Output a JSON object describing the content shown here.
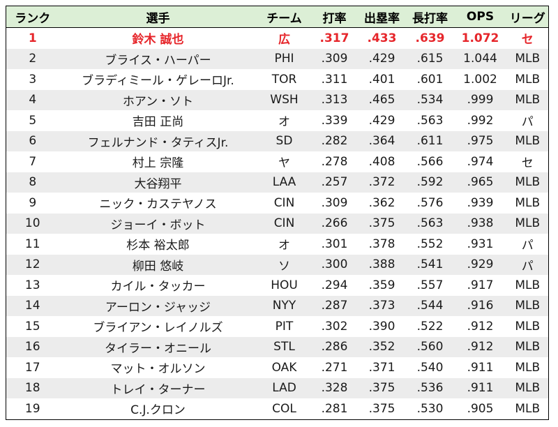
{
  "headers": {
    "rank": "ランク",
    "player": "選手",
    "team": "チーム",
    "avg": "打率",
    "obp": "出塁率",
    "slg": "長打率",
    "ops": "OPS",
    "league": "リーグ"
  },
  "highlight_color": "#e6262b",
  "header_bg": "#dcefd6",
  "rows": [
    {
      "rank": "1",
      "player": "鈴木 誠也",
      "team": "広",
      "avg": ".317",
      "obp": ".433",
      "slg": ".639",
      "ops": "1.072",
      "league": "セ"
    },
    {
      "rank": "2",
      "player": "ブライス・ハーパー",
      "team": "PHI",
      "avg": ".309",
      "obp": ".429",
      "slg": ".615",
      "ops": "1.044",
      "league": "MLB"
    },
    {
      "rank": "3",
      "player": "ブラディミール・ゲレーロJr.",
      "team": "TOR",
      "avg": ".311",
      "obp": ".401",
      "slg": ".601",
      "ops": "1.002",
      "league": "MLB"
    },
    {
      "rank": "4",
      "player": "ホアン・ソト",
      "team": "WSH",
      "avg": ".313",
      "obp": ".465",
      "slg": ".534",
      "ops": ".999",
      "league": "MLB"
    },
    {
      "rank": "5",
      "player": "吉田 正尚",
      "team": "オ",
      "avg": ".339",
      "obp": ".429",
      "slg": ".563",
      "ops": ".992",
      "league": "パ"
    },
    {
      "rank": "6",
      "player": "フェルナンド・タティスJr.",
      "team": "SD",
      "avg": ".282",
      "obp": ".364",
      "slg": ".611",
      "ops": ".975",
      "league": "MLB"
    },
    {
      "rank": "7",
      "player": "村上 宗隆",
      "team": "ヤ",
      "avg": ".278",
      "obp": ".408",
      "slg": ".566",
      "ops": ".974",
      "league": "セ"
    },
    {
      "rank": "8",
      "player": "大谷翔平",
      "team": "LAA",
      "avg": ".257",
      "obp": ".372",
      "slg": ".592",
      "ops": ".965",
      "league": "MLB"
    },
    {
      "rank": "9",
      "player": "ニック・カステヤノス",
      "team": "CIN",
      "avg": ".309",
      "obp": ".362",
      "slg": ".576",
      "ops": ".939",
      "league": "MLB"
    },
    {
      "rank": "10",
      "player": "ジョーイ・ボット",
      "team": "CIN",
      "avg": ".266",
      "obp": ".375",
      "slg": ".563",
      "ops": ".938",
      "league": "MLB"
    },
    {
      "rank": "11",
      "player": "杉本 裕太郎",
      "team": "オ",
      "avg": ".301",
      "obp": ".378",
      "slg": ".552",
      "ops": ".931",
      "league": "パ"
    },
    {
      "rank": "12",
      "player": "柳田 悠岐",
      "team": "ソ",
      "avg": ".300",
      "obp": ".388",
      "slg": ".541",
      "ops": ".929",
      "league": "パ"
    },
    {
      "rank": "13",
      "player": "カイル・タッカー",
      "team": "HOU",
      "avg": ".294",
      "obp": ".359",
      "slg": ".557",
      "ops": ".917",
      "league": "MLB"
    },
    {
      "rank": "14",
      "player": "アーロン・ジャッジ",
      "team": "NYY",
      "avg": ".287",
      "obp": ".373",
      "slg": ".544",
      "ops": ".916",
      "league": "MLB"
    },
    {
      "rank": "15",
      "player": "ブライアン・レイノルズ",
      "team": "PIT",
      "avg": ".302",
      "obp": ".390",
      "slg": ".522",
      "ops": ".912",
      "league": "MLB"
    },
    {
      "rank": "16",
      "player": "タイラー・オニール",
      "team": "STL",
      "avg": ".286",
      "obp": ".352",
      "slg": ".560",
      "ops": ".912",
      "league": "MLB"
    },
    {
      "rank": "17",
      "player": "マット・オルソン",
      "team": "OAK",
      "avg": ".271",
      "obp": ".371",
      "slg": ".540",
      "ops": ".911",
      "league": "MLB"
    },
    {
      "rank": "18",
      "player": "トレイ・ターナー",
      "team": "LAD",
      "avg": ".328",
      "obp": ".375",
      "slg": ".536",
      "ops": ".911",
      "league": "MLB"
    },
    {
      "rank": "19",
      "player": "C.J.クロン",
      "team": "COL",
      "avg": ".281",
      "obp": ".375",
      "slg": ".530",
      "ops": ".905",
      "league": "MLB"
    }
  ]
}
